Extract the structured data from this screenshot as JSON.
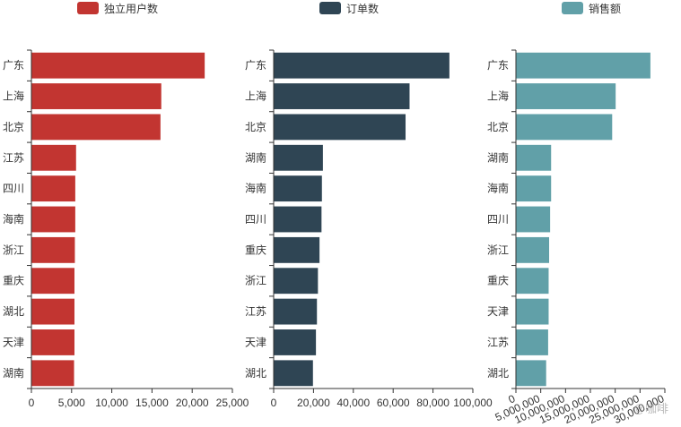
{
  "chart_data": [
    {
      "type": "bar",
      "orientation": "horizontal",
      "series_name": "独立用户数",
      "color": "#c23531",
      "categories": [
        "广东",
        "上海",
        "北京",
        "江苏",
        "四川",
        "海南",
        "浙江",
        "重庆",
        "湖北",
        "天津",
        "湖南"
      ],
      "values": [
        21500,
        16100,
        16000,
        5500,
        5400,
        5400,
        5350,
        5300,
        5300,
        5300,
        5250
      ],
      "xlim": [
        0,
        25000
      ],
      "xticks": [
        "0",
        "5,000",
        "10,000",
        "15,000",
        "20,000",
        "25,000"
      ]
    },
    {
      "type": "bar",
      "orientation": "horizontal",
      "series_name": "订单数",
      "color": "#2f4554",
      "categories": [
        "广东",
        "上海",
        "北京",
        "湖南",
        "海南",
        "四川",
        "重庆",
        "浙江",
        "江苏",
        "天津",
        "湖北"
      ],
      "values": [
        88000,
        68000,
        66000,
        24500,
        24000,
        23800,
        22800,
        22000,
        21500,
        21000,
        19500
      ],
      "xlim": [
        0,
        100000
      ],
      "xticks": [
        "0",
        "20,000",
        "40,000",
        "60,000",
        "80,000",
        "100,000"
      ]
    },
    {
      "type": "bar",
      "orientation": "horizontal",
      "series_name": "销售额",
      "color": "#61a0a8",
      "categories": [
        "广东",
        "上海",
        "北京",
        "湖南",
        "海南",
        "四川",
        "浙江",
        "重庆",
        "天津",
        "江苏",
        "湖北"
      ],
      "values": [
        27000000,
        20000000,
        19300000,
        7000000,
        7000000,
        6800000,
        6600000,
        6500000,
        6500000,
        6400000,
        6000000
      ],
      "xlim": [
        0,
        30000000
      ],
      "xticks": [
        "0",
        "5,000,000",
        "10,000,000",
        "15,000,000",
        "20,000,000",
        "25,000,000",
        "30,000,000"
      ],
      "xtick_rotation": "rotated"
    }
  ],
  "watermark": "@咖啡"
}
